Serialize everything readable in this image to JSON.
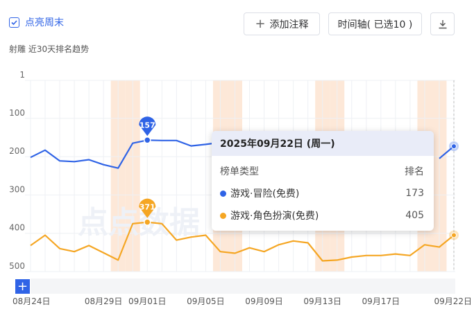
{
  "header": {
    "highlight_weekends_label": "点亮周末",
    "add_note_label": "添加注释",
    "timeline_label": "时间轴( 已选10 )",
    "subtitle": "射雕  近30天排名趋势"
  },
  "watermark": "点点数据",
  "tooltip": {
    "date": "2025年09月22日 (周一)",
    "col_type": "榜单类型",
    "col_rank": "排名",
    "rows": [
      {
        "name": "游戏·冒险(免费)",
        "value": "173"
      },
      {
        "name": "游戏·角色扮演(免费)",
        "value": "405"
      }
    ]
  },
  "colors": {
    "blue": "#2f63e6",
    "orange": "#f5a623",
    "weekend": "#fde8d8",
    "accent": "#2f63e6"
  },
  "icons": {
    "check": "check-icon",
    "plus": "plus-icon",
    "download": "download-icon",
    "add": "plus-icon"
  },
  "chart_data": {
    "type": "line",
    "title": "近30天排名趋势",
    "y_reversed": true,
    "ylim": [
      1,
      500
    ],
    "yticks": [
      1,
      100,
      200,
      300,
      400,
      500
    ],
    "x": [
      "08月24日",
      "08月25日",
      "08月26日",
      "08月27日",
      "08月28日",
      "08月29日",
      "08月30日",
      "08月31日",
      "09月01日",
      "09月02日",
      "09月03日",
      "09月04日",
      "09月05日",
      "09月06日",
      "09月07日",
      "09月08日",
      "09月09日",
      "09月10日",
      "09月11日",
      "09月12日",
      "09月13日",
      "09月14日",
      "09月15日",
      "09月16日",
      "09月17日",
      "09月18日",
      "09月19日",
      "09月20日",
      "09月21日",
      "09月22日"
    ],
    "xtick_labels": [
      "08月24日",
      "08月29日",
      "09月01日",
      "09月05日",
      "09月09日",
      "09月13日",
      "09月17日",
      "09月22日"
    ],
    "weekend_dates": [
      "08月30日",
      "08月31日",
      "09月06日",
      "09月07日",
      "09月13日",
      "09月14日",
      "09月20日",
      "09月21日"
    ],
    "grid": true,
    "series": [
      {
        "name": "游戏·冒险(免费)",
        "color": "#2f63e6",
        "values": [
          202,
          183,
          211,
          213,
          208,
          221,
          230,
          165,
          157,
          158,
          158,
          172,
          168,
          163,
          null,
          null,
          null,
          null,
          null,
          null,
          null,
          null,
          null,
          null,
          null,
          null,
          null,
          null,
          205,
          173
        ],
        "marker_label": {
          "date": "09月01日",
          "value": "157"
        }
      },
      {
        "name": "游戏·角色扮演(免费)",
        "color": "#f5a623",
        "values": [
          432,
          405,
          440,
          448,
          432,
          451,
          470,
          375,
          371,
          375,
          418,
          410,
          405,
          448,
          452,
          438,
          448,
          430,
          420,
          425,
          472,
          470,
          462,
          458,
          458,
          454,
          458,
          430,
          436,
          405
        ],
        "marker_label": {
          "date": "09月01日",
          "value": "371"
        }
      }
    ]
  }
}
